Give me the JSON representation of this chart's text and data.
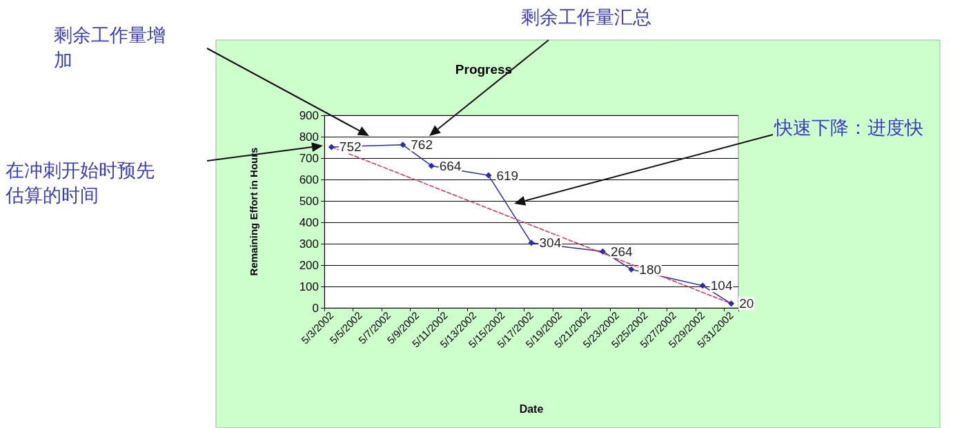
{
  "chart_data": {
    "type": "line",
    "title": "Progress",
    "xlabel": "Date",
    "ylabel": "Remaining Effort in Hours",
    "categories": [
      "5/3/2002",
      null,
      "5/5/2002",
      null,
      "5/7/2002",
      null,
      "5/9/2002",
      null,
      "5/11/2002",
      null,
      "5/13/2002",
      null,
      "5/15/2002",
      null,
      "5/17/2002",
      null,
      "5/19/2002",
      null,
      "5/21/2002",
      null,
      "5/23/2002",
      null,
      "5/25/2002",
      null,
      "5/27/2002",
      null,
      "5/29/2002",
      null,
      "5/31/2002"
    ],
    "series": [
      {
        "color": "#2b2bb0",
        "marker": "diamond",
        "line_style": "solid",
        "data_labels": true,
        "values": [
          752,
          null,
          null,
          null,
          null,
          762,
          null,
          664,
          null,
          null,
          null,
          619,
          null,
          null,
          304,
          null,
          null,
          null,
          null,
          264,
          null,
          180,
          null,
          null,
          null,
          null,
          104,
          null,
          20
        ]
      },
      {
        "color": "#e03050",
        "marker": "none",
        "line_style": "dashed",
        "values": [
          752,
          null,
          null,
          null,
          null,
          null,
          null,
          null,
          null,
          null,
          null,
          null,
          null,
          null,
          null,
          null,
          null,
          null,
          null,
          null,
          null,
          null,
          null,
          null,
          null,
          null,
          null,
          null,
          20
        ]
      }
    ],
    "ylim": [
      0,
      900
    ],
    "yticks": [
      0,
      100,
      200,
      300,
      400,
      500,
      600,
      700,
      800,
      900
    ],
    "grid": "y",
    "annotations": [
      "剩余工作量增加",
      "剩余工作量汇总",
      "在冲刺开始时预先估算的时间",
      "快速下降：进度快"
    ]
  }
}
